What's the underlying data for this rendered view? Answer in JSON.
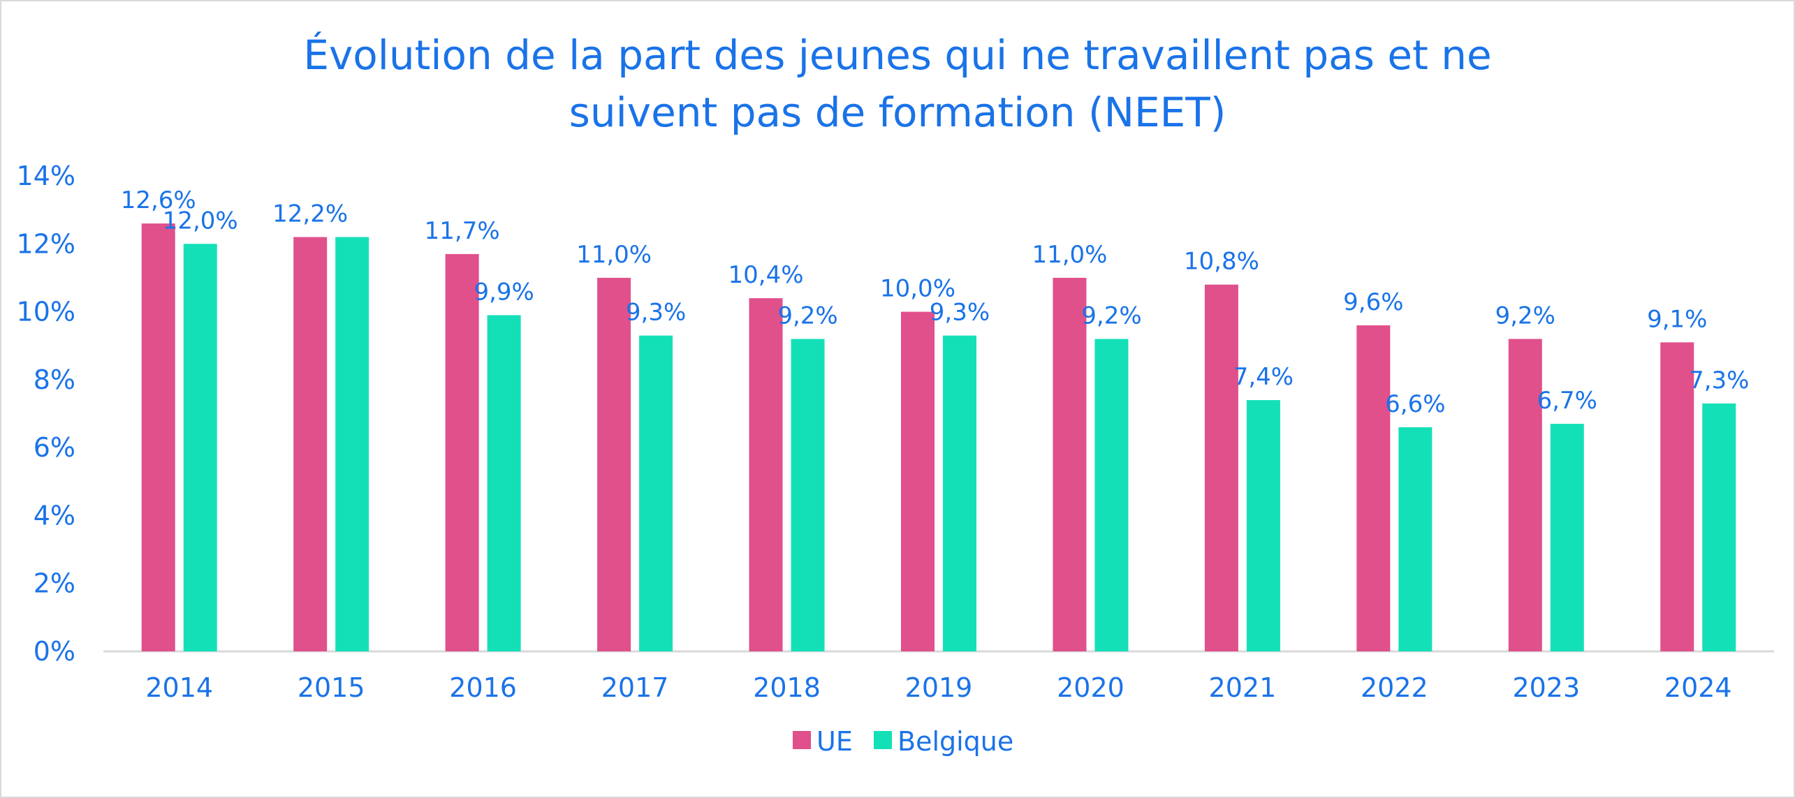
{
  "chart_data": {
    "type": "bar",
    "title_line1": "Évolution de la part des jeunes qui ne travaillent pas et ne",
    "title_line2": "suivent pas de formation (NEET)",
    "categories": [
      "2014",
      "2015",
      "2016",
      "2017",
      "2018",
      "2019",
      "2020",
      "2021",
      "2022",
      "2023",
      "2024"
    ],
    "series": [
      {
        "name": "UE",
        "color": "#e0508b",
        "values": [
          12.6,
          12.2,
          11.7,
          11.0,
          10.4,
          10.0,
          11.0,
          10.8,
          9.6,
          9.2,
          9.1
        ],
        "labels": [
          "12,6%",
          "12,2%",
          "11,7%",
          "11,0%",
          "10,4%",
          "10,0%",
          "11,0%",
          "10,8%",
          "9,6%",
          "9,2%",
          "9,1%"
        ]
      },
      {
        "name": "Belgique",
        "color": "#14e0b8",
        "values": [
          12.0,
          12.2,
          9.9,
          9.3,
          9.2,
          9.3,
          9.2,
          7.4,
          6.6,
          6.7,
          7.3
        ],
        "labels": [
          "12,0%",
          "",
          "9,9%",
          "9,3%",
          "9,2%",
          "9,3%",
          "9,2%",
          "7,4%",
          "6,6%",
          "6,7%",
          "7,3%"
        ]
      }
    ],
    "ylim": [
      0,
      14
    ],
    "yticks": [
      "0%",
      "2%",
      "4%",
      "6%",
      "8%",
      "10%",
      "12%",
      "14%"
    ],
    "grid": false,
    "legend_position": "bottom-center",
    "text_color": "#1a73e8",
    "axis_color": "#d9d9d9"
  }
}
